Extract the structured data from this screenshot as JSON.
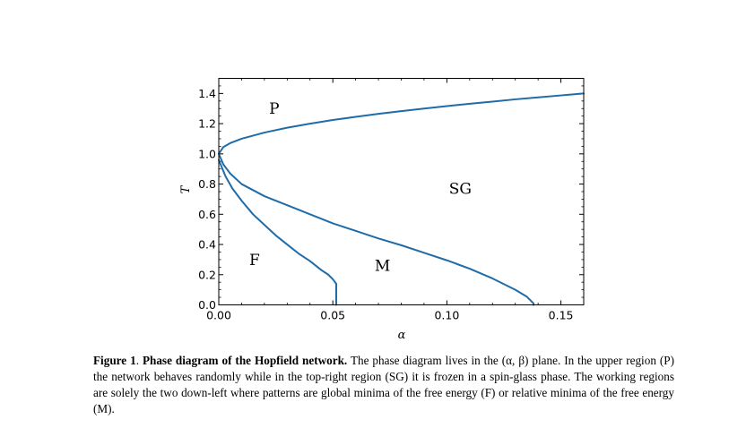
{
  "chart_data": {
    "type": "line",
    "title": "",
    "xlabel": "α",
    "ylabel": "T",
    "xlim": [
      0,
      0.16
    ],
    "ylim": [
      0,
      1.5
    ],
    "x_ticks": [
      "0.00",
      "0.05",
      "0.10",
      "0.15"
    ],
    "x_tick_values": [
      0,
      0.05,
      0.1,
      0.15
    ],
    "y_ticks": [
      "0.0",
      "0.2",
      "0.4",
      "0.6",
      "0.8",
      "1.0",
      "1.2",
      "1.4"
    ],
    "y_tick_values": [
      0,
      0.2,
      0.4,
      0.6,
      0.8,
      1.0,
      1.2,
      1.4
    ],
    "grid": false,
    "line_color": "#1f6ca8",
    "series": [
      {
        "x": [
          0,
          0.002,
          0.005,
          0.01,
          0.02,
          0.03,
          0.04,
          0.05,
          0.06,
          0.07,
          0.08,
          0.09,
          0.1,
          0.11,
          0.12,
          0.13,
          0.14,
          0.15,
          0.16
        ],
        "y": [
          1.0,
          1.045,
          1.071,
          1.1,
          1.141,
          1.173,
          1.2,
          1.224,
          1.245,
          1.265,
          1.283,
          1.3,
          1.316,
          1.332,
          1.346,
          1.361,
          1.374,
          1.387,
          1.4
        ]
      },
      {
        "x": [
          0,
          0.002,
          0.005,
          0.01,
          0.02,
          0.03,
          0.04,
          0.05,
          0.06,
          0.07,
          0.08,
          0.09,
          0.1,
          0.11,
          0.12,
          0.13,
          0.135,
          0.137,
          0.138,
          0.138
        ],
        "y": [
          1.0,
          0.93,
          0.87,
          0.8,
          0.72,
          0.66,
          0.6,
          0.54,
          0.49,
          0.44,
          0.395,
          0.345,
          0.295,
          0.24,
          0.175,
          0.1,
          0.055,
          0.025,
          0.01,
          0.0
        ]
      },
      {
        "x": [
          0,
          0.003,
          0.006,
          0.01,
          0.015,
          0.02,
          0.025,
          0.03,
          0.035,
          0.04,
          0.045,
          0.048,
          0.05,
          0.051,
          0.0515,
          0.0515
        ],
        "y": [
          0.96,
          0.85,
          0.77,
          0.69,
          0.6,
          0.53,
          0.46,
          0.4,
          0.34,
          0.29,
          0.23,
          0.2,
          0.17,
          0.15,
          0.14,
          0.0
        ]
      }
    ],
    "annotations": [
      {
        "text": "P",
        "x": 0.0243,
        "y": 1.3
      },
      {
        "text": "SG",
        "x": 0.1059,
        "y": 0.77
      },
      {
        "text": "F",
        "x": 0.0157,
        "y": 0.3
      },
      {
        "text": "M",
        "x": 0.0718,
        "y": 0.26
      }
    ]
  },
  "caption": {
    "figure_label": "Figure 1",
    "separator": ". ",
    "bold_title": "Phase diagram of the Hopfield network.",
    "text": " The phase diagram lives in the (α, β) plane. In the upper region (P) the network behaves randomly while in the top-right region (SG) it is frozen in a spin-glass phase. The working regions are solely the two down-left where patterns are global minima of the free energy (F) or relative minima of the free energy (M)."
  }
}
